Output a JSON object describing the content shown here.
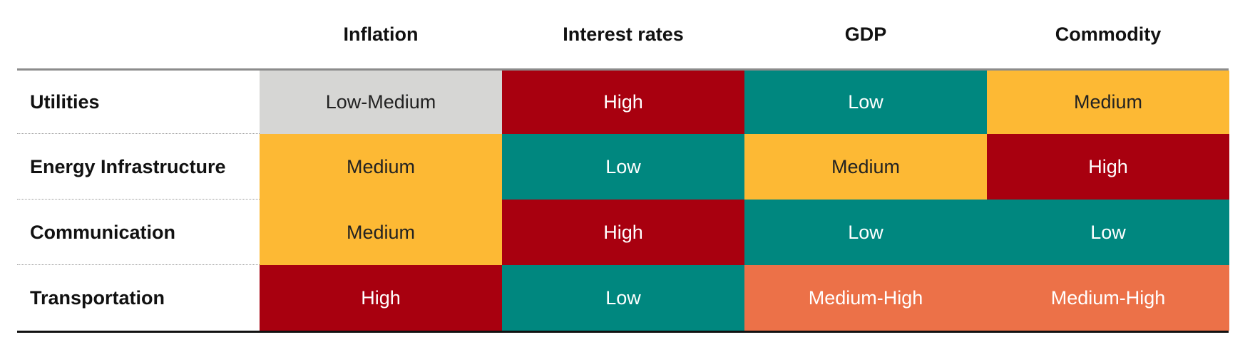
{
  "chart_data": {
    "type": "table",
    "columns": [
      "Inflation",
      "Interest rates",
      "GDP",
      "Commodity"
    ],
    "rows": [
      {
        "label": "Utilities",
        "values": [
          "Low-Medium",
          "High",
          "Low",
          "Medium"
        ]
      },
      {
        "label": "Energy Infrastructure",
        "values": [
          "Medium",
          "Low",
          "Medium",
          "High"
        ]
      },
      {
        "label": "Communication",
        "values": [
          "Medium",
          "High",
          "Low",
          "Low"
        ]
      },
      {
        "label": "Transportation",
        "values": [
          "High",
          "Low",
          "Medium-High",
          "Medium-High"
        ]
      }
    ]
  },
  "level_colors": {
    "Low": {
      "bg": "#00877f",
      "fg": "#ffffff"
    },
    "Low-Medium": {
      "bg": "#d6d6d4",
      "fg": "#222222"
    },
    "Medium": {
      "bg": "#fdb934",
      "fg": "#222222"
    },
    "Medium-High": {
      "bg": "#ec7148",
      "fg": "#ffffff"
    },
    "High": {
      "bg": "#a8000f",
      "fg": "#ffffff"
    }
  }
}
